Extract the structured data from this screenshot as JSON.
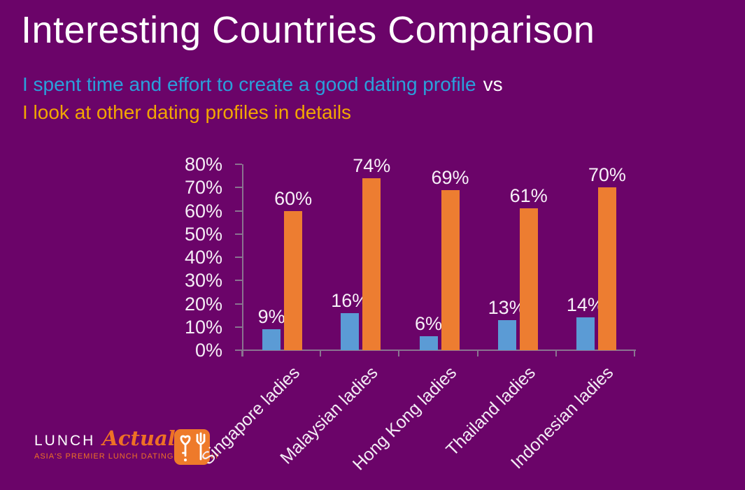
{
  "slide": {
    "title": "Interesting Countries Comparison",
    "subtitle_line1_blue": "I spent time and effort to create a good dating profile",
    "subtitle_line1_vs": "vs",
    "subtitle_line2_orange": "I look at other dating profiles in details",
    "background_color": "#6B0469",
    "title_color": "#FFFFFF",
    "subtitle_blue_color": "#2AA0DB",
    "subtitle_orange_color": "#F2A602"
  },
  "chart_data": {
    "type": "bar",
    "title": "",
    "categories": [
      "Singapore ladies",
      "Malaysian ladies",
      "Hong Kong ladies",
      "Thailand ladies",
      "Indonesian ladies"
    ],
    "series": [
      {
        "name": "I spent time and effort to create a good dating profile",
        "color": "#5B9BD5",
        "values": [
          9,
          16,
          6,
          13,
          14
        ]
      },
      {
        "name": "I look at other dating profiles in details",
        "color": "#ED7D31",
        "values": [
          60,
          74,
          69,
          61,
          70
        ]
      }
    ],
    "xlabel": "",
    "ylabel": "",
    "ylim": [
      0,
      80
    ],
    "ytick_step": 10,
    "tick_suffix": "%",
    "data_label_suffix": "%",
    "grid": false,
    "legend_position": "none",
    "axis_color": "#8A7490",
    "tick_label_color": "#F5EEF6",
    "data_label_color": "#F7F0F8",
    "category_label_color": "#F3ECF5",
    "category_label_rotation_deg": -45
  },
  "logo": {
    "brand_primary": "LUNCH",
    "brand_secondary": "Actually",
    "tagline": "ASIA'S PREMIER LUNCH DATING COMPANY",
    "icon_name": "heart-key-and-fork-icon",
    "orange": "#EE7125"
  }
}
